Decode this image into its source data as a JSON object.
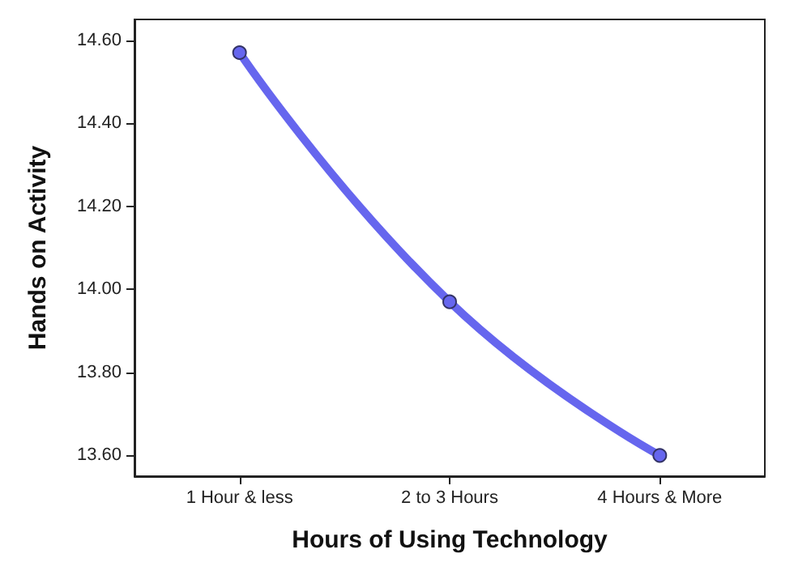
{
  "chart_data": {
    "type": "line",
    "xlabel": "Hours of Using Technology",
    "ylabel": "Hands on Activity",
    "categories": [
      "1 Hour & less",
      "2 to 3 Hours",
      "4 Hours & More"
    ],
    "series": [
      {
        "color": "#6666ee",
        "values": [
          14.57,
          13.97,
          13.6
        ]
      }
    ],
    "ylim": [
      13.55,
      14.65
    ],
    "yticks": [
      {
        "value": 13.6,
        "label": "13.60"
      },
      {
        "value": 13.8,
        "label": "13.80"
      },
      {
        "value": 14.0,
        "label": "14.00"
      },
      {
        "value": 14.2,
        "label": "14.20"
      },
      {
        "value": 14.4,
        "label": "14.40"
      },
      {
        "value": 14.6,
        "label": "14.60"
      }
    ],
    "grid": false,
    "marker": "circle",
    "line_style": "solid"
  }
}
